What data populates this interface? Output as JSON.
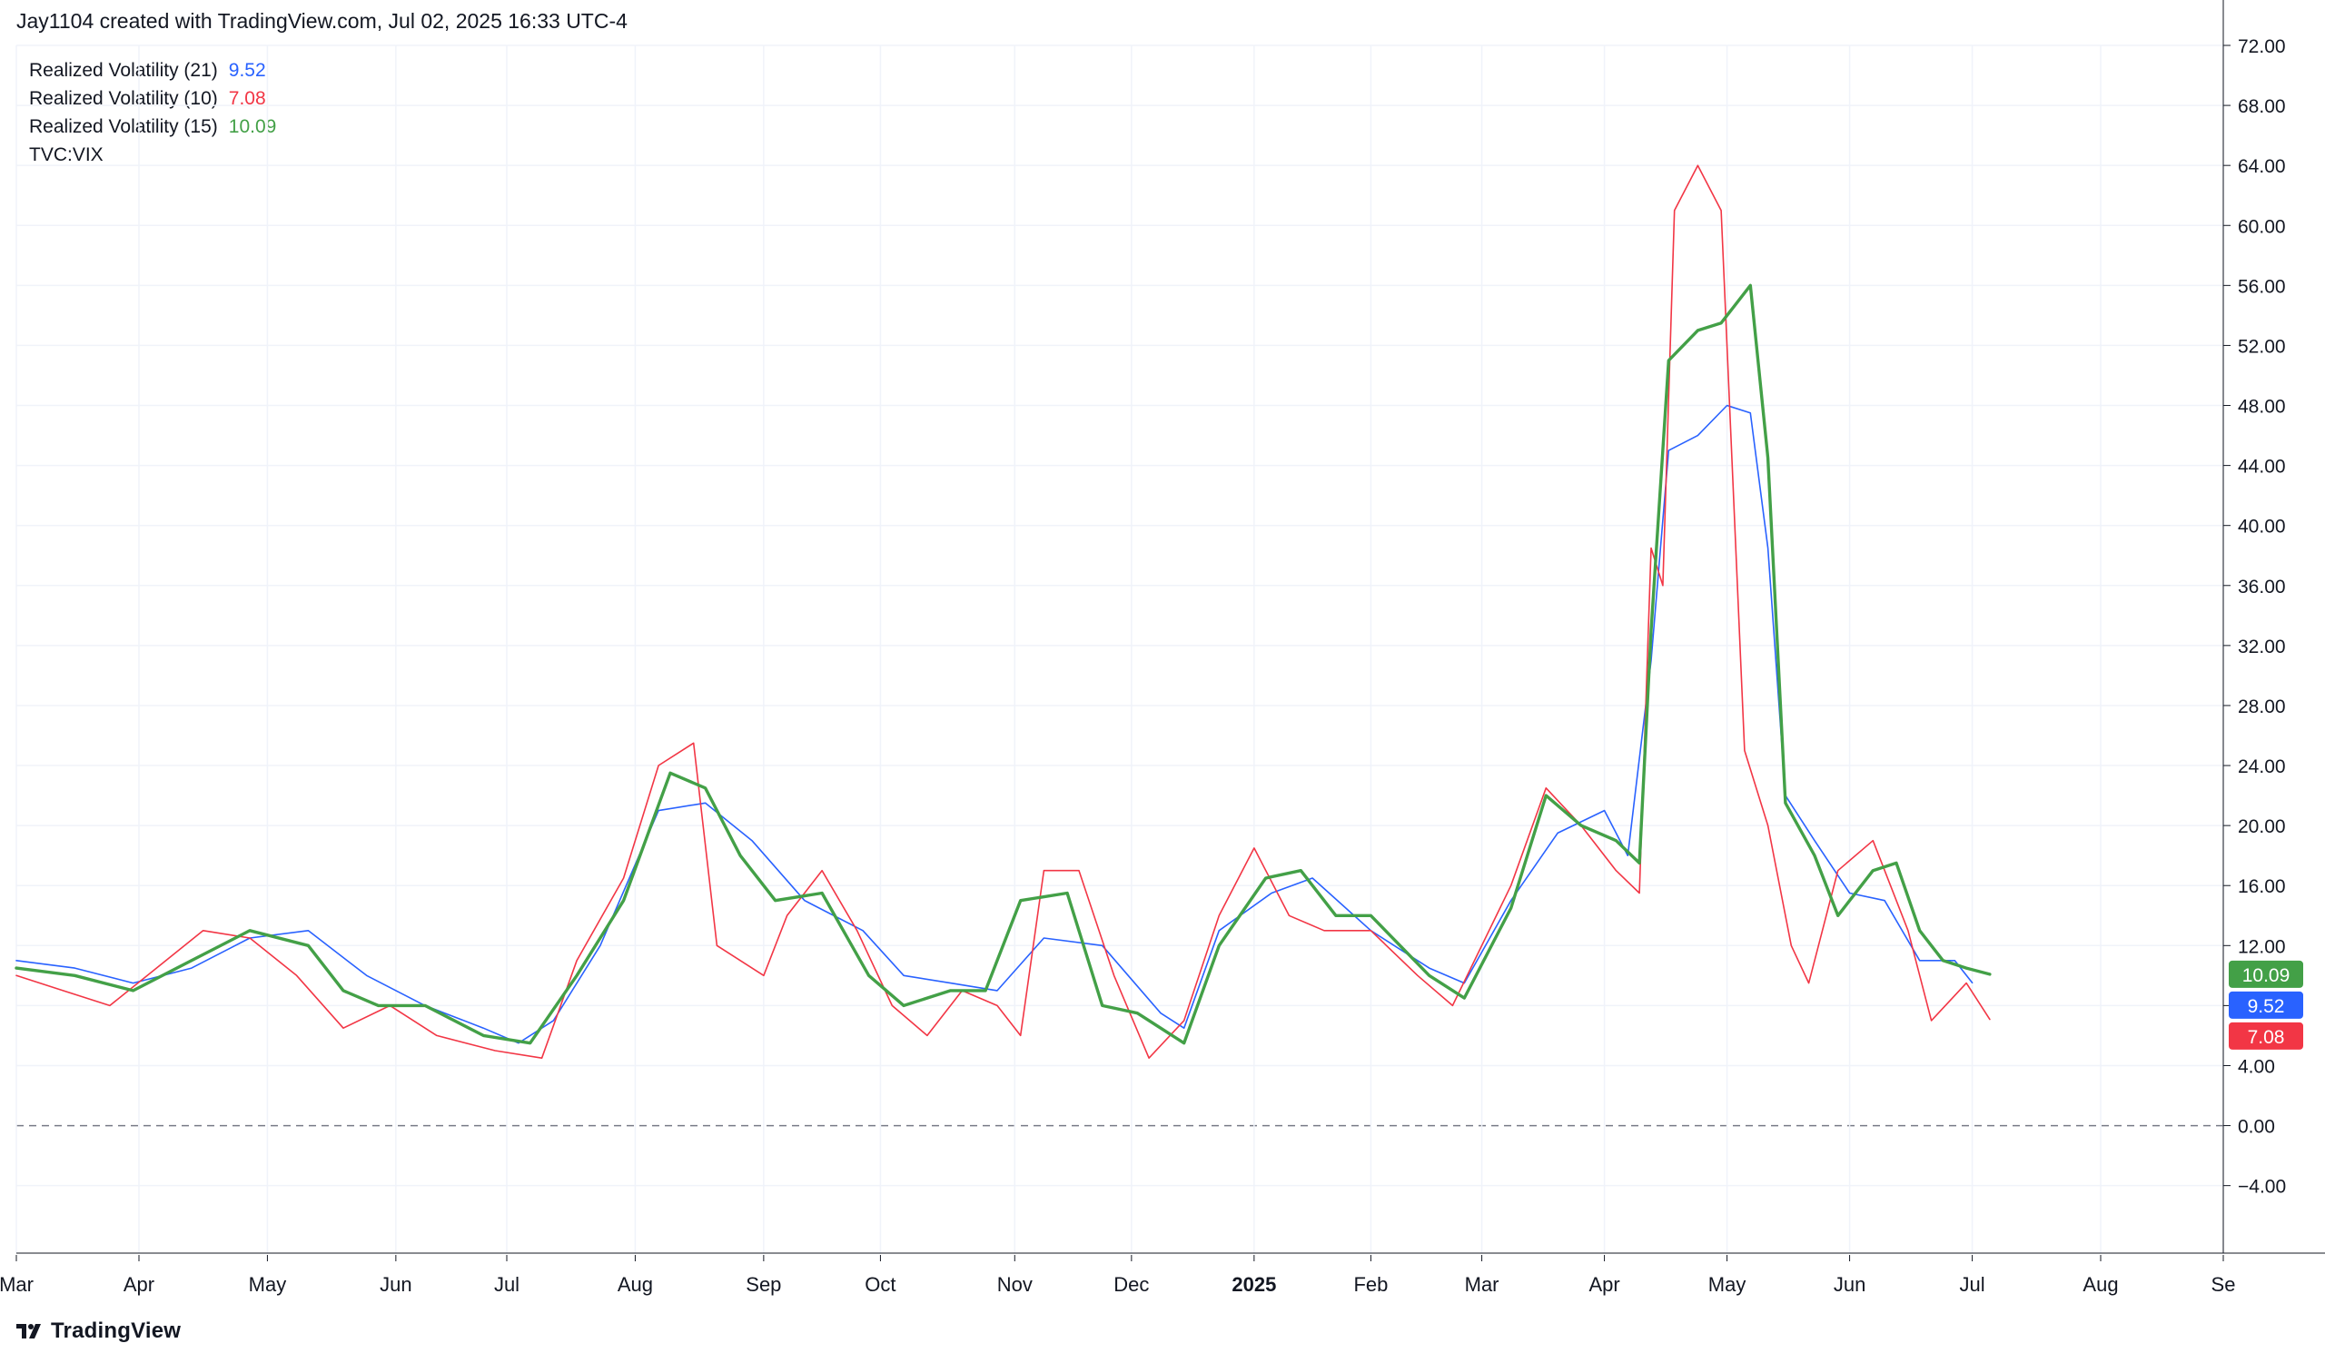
{
  "header": {
    "credit": "Jay1104 created with TradingView.com, Jul 02, 2025 16:33 UTC-4"
  },
  "legend": [
    {
      "label": "Realized Volatility (21)",
      "value": "9.52",
      "color": "#2962ff"
    },
    {
      "label": "Realized Volatility (10)",
      "value": "7.08",
      "color": "#f23645"
    },
    {
      "label": "Realized Volatility (15)",
      "value": "10.09",
      "color": "#43a047"
    },
    {
      "label": "TVC:VIX",
      "value": "",
      "color": "#131722"
    }
  ],
  "footer": {
    "brand": "TradingView",
    "logo_icon": "tradingview-logo-icon"
  },
  "chart_data": {
    "type": "line",
    "x_axis": {
      "ticks": [
        "Mar",
        "Apr",
        "May",
        "Jun",
        "Jul",
        "Aug",
        "Sep",
        "Oct",
        "Nov",
        "Dec",
        "2025",
        "Feb",
        "Mar",
        "Apr",
        "May",
        "Jun",
        "Jul",
        "Aug",
        "Se"
      ],
      "tick_index": [
        0,
        21,
        43,
        65,
        84,
        106,
        128,
        148,
        171,
        191,
        212,
        232,
        251,
        272,
        293,
        314,
        335,
        357,
        378
      ],
      "bold_tick": "2025",
      "domain_index": [
        0,
        378
      ]
    },
    "y_axis": {
      "ylim": [
        -8.5,
        72
      ],
      "ticks": [
        "72.00",
        "68.00",
        "64.00",
        "60.00",
        "56.00",
        "52.00",
        "48.00",
        "44.00",
        "40.00",
        "36.00",
        "32.00",
        "28.00",
        "24.00",
        "20.00",
        "16.00",
        "12.00",
        "8.00",
        "4.00",
        "0.00",
        "−4.00"
      ],
      "tick_values": [
        72,
        68,
        64,
        60,
        56,
        52,
        48,
        44,
        40,
        36,
        32,
        28,
        24,
        20,
        16,
        12,
        8,
        4,
        0,
        -4
      ],
      "zero_line": "dashed",
      "grid": true
    },
    "series": [
      {
        "name": "Realized Volatility (21)",
        "color": "#2962ff",
        "width": 1.6,
        "last": 9.52,
        "points": [
          [
            0,
            11
          ],
          [
            10,
            10.5
          ],
          [
            20,
            9.5
          ],
          [
            30,
            10.5
          ],
          [
            40,
            12.5
          ],
          [
            50,
            13
          ],
          [
            60,
            10
          ],
          [
            70,
            8
          ],
          [
            80,
            6.5
          ],
          [
            86,
            5.5
          ],
          [
            92,
            7
          ],
          [
            100,
            12
          ],
          [
            110,
            21
          ],
          [
            118,
            21.5
          ],
          [
            126,
            19
          ],
          [
            135,
            15
          ],
          [
            145,
            13
          ],
          [
            152,
            10
          ],
          [
            160,
            9.5
          ],
          [
            168,
            9
          ],
          [
            176,
            12.5
          ],
          [
            186,
            12
          ],
          [
            196,
            7.5
          ],
          [
            200,
            6.5
          ],
          [
            206,
            13
          ],
          [
            215,
            15.5
          ],
          [
            222,
            16.5
          ],
          [
            232,
            13
          ],
          [
            242,
            10.5
          ],
          [
            248,
            9.5
          ],
          [
            256,
            15
          ],
          [
            264,
            19.5
          ],
          [
            272,
            21
          ],
          [
            276,
            18
          ],
          [
            280,
            31
          ],
          [
            283,
            45
          ],
          [
            288,
            46
          ],
          [
            293,
            48
          ],
          [
            297,
            47.5
          ],
          [
            300,
            38.5
          ],
          [
            303,
            22
          ],
          [
            308,
            19
          ],
          [
            314,
            15.5
          ],
          [
            320,
            15
          ],
          [
            326,
            11
          ],
          [
            332,
            11
          ],
          [
            335,
            9.52
          ]
        ]
      },
      {
        "name": "Realized Volatility (10)",
        "color": "#f23645",
        "width": 1.6,
        "last": 7.08,
        "points": [
          [
            0,
            10
          ],
          [
            8,
            9
          ],
          [
            16,
            8
          ],
          [
            24,
            10.5
          ],
          [
            32,
            13
          ],
          [
            40,
            12.5
          ],
          [
            48,
            10
          ],
          [
            56,
            6.5
          ],
          [
            64,
            8
          ],
          [
            72,
            6
          ],
          [
            82,
            5
          ],
          [
            90,
            4.5
          ],
          [
            96,
            11
          ],
          [
            104,
            16.5
          ],
          [
            110,
            24
          ],
          [
            116,
            25.5
          ],
          [
            120,
            12
          ],
          [
            128,
            10
          ],
          [
            132,
            14
          ],
          [
            138,
            17
          ],
          [
            144,
            13
          ],
          [
            150,
            8
          ],
          [
            156,
            6
          ],
          [
            162,
            9
          ],
          [
            168,
            8
          ],
          [
            172,
            6
          ],
          [
            176,
            17
          ],
          [
            182,
            17
          ],
          [
            188,
            10
          ],
          [
            194,
            4.5
          ],
          [
            200,
            7
          ],
          [
            206,
            14
          ],
          [
            212,
            18.5
          ],
          [
            218,
            14
          ],
          [
            224,
            13
          ],
          [
            232,
            13
          ],
          [
            240,
            10
          ],
          [
            246,
            8
          ],
          [
            256,
            16
          ],
          [
            262,
            22.5
          ],
          [
            268,
            20
          ],
          [
            274,
            17
          ],
          [
            278,
            15.5
          ],
          [
            280,
            38.5
          ],
          [
            282,
            36
          ],
          [
            284,
            61
          ],
          [
            288,
            64
          ],
          [
            292,
            61
          ],
          [
            296,
            25
          ],
          [
            300,
            20
          ],
          [
            304,
            12
          ],
          [
            307,
            9.5
          ],
          [
            312,
            17
          ],
          [
            318,
            19
          ],
          [
            324,
            13
          ],
          [
            328,
            7
          ],
          [
            334,
            9.5
          ],
          [
            338,
            7.08
          ]
        ]
      },
      {
        "name": "Realized Volatility (15)",
        "color": "#43a047",
        "width": 3.4,
        "last": 10.09,
        "points": [
          [
            0,
            10.5
          ],
          [
            10,
            10
          ],
          [
            20,
            9
          ],
          [
            30,
            11
          ],
          [
            40,
            13
          ],
          [
            50,
            12
          ],
          [
            56,
            9
          ],
          [
            62,
            8
          ],
          [
            70,
            8
          ],
          [
            80,
            6
          ],
          [
            88,
            5.5
          ],
          [
            96,
            10
          ],
          [
            104,
            15
          ],
          [
            112,
            23.5
          ],
          [
            118,
            22.5
          ],
          [
            124,
            18
          ],
          [
            130,
            15
          ],
          [
            138,
            15.5
          ],
          [
            146,
            10
          ],
          [
            152,
            8
          ],
          [
            160,
            9
          ],
          [
            166,
            9
          ],
          [
            172,
            15
          ],
          [
            180,
            15.5
          ],
          [
            186,
            8
          ],
          [
            192,
            7.5
          ],
          [
            200,
            5.5
          ],
          [
            206,
            12
          ],
          [
            214,
            16.5
          ],
          [
            220,
            17
          ],
          [
            226,
            14
          ],
          [
            232,
            14
          ],
          [
            242,
            10
          ],
          [
            248,
            8.5
          ],
          [
            256,
            14.5
          ],
          [
            262,
            22
          ],
          [
            268,
            20
          ],
          [
            274,
            19
          ],
          [
            278,
            17.5
          ],
          [
            280,
            33
          ],
          [
            283,
            51
          ],
          [
            288,
            53
          ],
          [
            292,
            53.5
          ],
          [
            297,
            56
          ],
          [
            300,
            44.5
          ],
          [
            303,
            21.5
          ],
          [
            308,
            18
          ],
          [
            312,
            14
          ],
          [
            318,
            17
          ],
          [
            322,
            17.5
          ],
          [
            326,
            13
          ],
          [
            330,
            11
          ],
          [
            334,
            10.5
          ],
          [
            338,
            10.09
          ]
        ]
      }
    ]
  }
}
